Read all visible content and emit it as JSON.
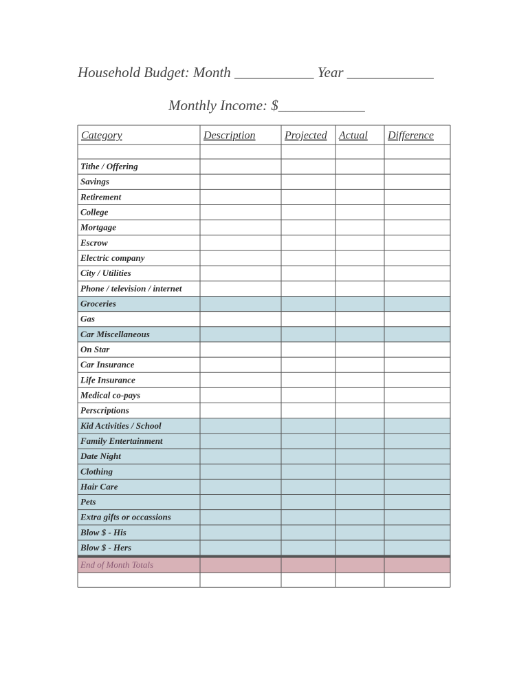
{
  "header": {
    "title": "Household Budget:   Month ___________  Year ____________",
    "income": "Monthly Income:  $____________"
  },
  "table": {
    "columns": [
      "Category",
      "Description",
      "Projected",
      "Actual",
      "Difference"
    ],
    "rows": [
      {
        "category": "Tithe / Offering"
      },
      {
        "category": "Savings"
      },
      {
        "category": "Retirement"
      },
      {
        "category": "College"
      },
      {
        "category": "Mortgage"
      },
      {
        "category": "Escrow"
      },
      {
        "category": "Electric company"
      },
      {
        "category": "City / Utilities"
      },
      {
        "category": "Phone / television / internet"
      },
      {
        "category": "Groceries",
        "fill": "#c6dde4"
      },
      {
        "category": "Gas"
      },
      {
        "category": "Car Miscellaneous",
        "fill": "#c6dde4"
      },
      {
        "category": "On Star"
      },
      {
        "category": "Car Insurance"
      },
      {
        "category": "Life Insurance"
      },
      {
        "category": "Medical co-pays"
      },
      {
        "category": "Perscriptions"
      },
      {
        "category": "Kid Activities / School",
        "fill": "#c6dde4"
      },
      {
        "category": "Family Entertainment",
        "fill": "#c6dde4"
      },
      {
        "category": "Date Night",
        "fill": "#c6dde4"
      },
      {
        "category": "Clothing",
        "fill": "#c6dde4"
      },
      {
        "category": "Hair Care",
        "fill": "#c6dde4"
      },
      {
        "category": "Pets",
        "fill": "#c6dde4"
      },
      {
        "category": "Extra gifts or occassions",
        "fill": "#c6dde4"
      },
      {
        "category": "Blow $ - His",
        "fill": "#c6dde4"
      },
      {
        "category": "Blow $ - Hers",
        "fill": "#c6dde4"
      }
    ],
    "totals": {
      "category": "End of Month Totals",
      "fill": "#d8b2b7",
      "color": "#8a5a74"
    }
  }
}
